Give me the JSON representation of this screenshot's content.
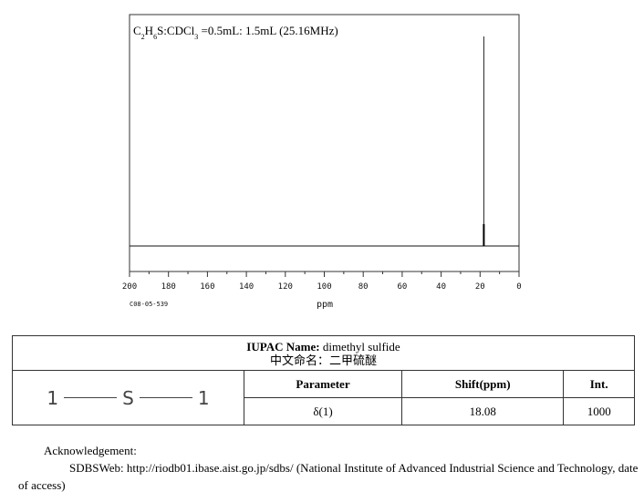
{
  "chart_data": {
    "type": "line",
    "sample_info": "C2H6S:CDCl3 =0.5mL: 1.5mL (25.16MHz)",
    "formula_parts": [
      "C",
      "2",
      "H",
      "6",
      "S:CDCl",
      "3",
      " =0.5mL: 1.5mL (25.16MHz)"
    ],
    "xlabel": "ppm",
    "xlim": [
      200,
      0
    ],
    "x_reversed": true,
    "x_ticks": [
      "200",
      "180",
      "160",
      "140",
      "120",
      "100",
      "80",
      "60",
      "40",
      "20",
      "0"
    ],
    "x_tick_values": [
      200,
      180,
      160,
      140,
      120,
      100,
      80,
      60,
      40,
      20,
      0
    ],
    "peaks": [
      {
        "shift": 18.08,
        "intensity": 1000
      }
    ],
    "ylim": [
      0,
      1000
    ],
    "code": "C08-05-539"
  },
  "info_table": {
    "iupac_label": "IUPAC Name:",
    "iupac_value": "dimethyl sulfide",
    "chinese_name": "中文命名：二甲硫醚",
    "structure": {
      "left": "1",
      "center": "S",
      "right": "1"
    },
    "headers": [
      "Parameter",
      "Shift(ppm)",
      "Int."
    ],
    "rows": [
      [
        "δ(1)",
        "18.08",
        "1000"
      ]
    ]
  },
  "acknowledgement": {
    "title": "Acknowledgement:",
    "body": "SDBSWeb: http://riodb01.ibase.aist.go.jp/sdbs/ (National Institute of Advanced Industrial Science and Technology, date of access)"
  }
}
